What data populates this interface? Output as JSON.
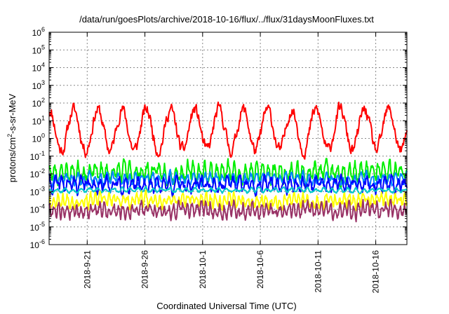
{
  "chart_data": {
    "type": "line",
    "title": "/data/run/goesPlots/archive/2018-10-16/flux/../flux/31daysMoonFluxes.txt",
    "xlabel": "Coordinated Universal Time (UTC)",
    "ylabel_base": "protons/cm",
    "ylabel_sup": "2",
    "ylabel_rest": "-s-sr-MeV",
    "yscale": "log",
    "ylim": [
      1e-06,
      1000000.0
    ],
    "grid": true,
    "y_ticks": [
      {
        "value": 1e-06,
        "base": "10",
        "exp": "-6"
      },
      {
        "value": 1e-05,
        "base": "10",
        "exp": "-5"
      },
      {
        "value": 0.0001,
        "base": "10",
        "exp": "-4"
      },
      {
        "value": 0.001,
        "base": "10",
        "exp": "-3"
      },
      {
        "value": 0.01,
        "base": "10",
        "exp": "-2"
      },
      {
        "value": 0.1,
        "base": "10",
        "exp": "-1"
      },
      {
        "value": 1,
        "base": "10",
        "exp": "0"
      },
      {
        "value": 10.0,
        "base": "10",
        "exp": "1"
      },
      {
        "value": 100.0,
        "base": "10",
        "exp": "2"
      },
      {
        "value": 1000.0,
        "base": "10",
        "exp": "3"
      },
      {
        "value": 10000.0,
        "base": "10",
        "exp": "4"
      },
      {
        "value": 100000.0,
        "base": "10",
        "exp": "5"
      },
      {
        "value": 1000000.0,
        "base": "10",
        "exp": "6"
      }
    ],
    "xlim_days": [
      0,
      31
    ],
    "x_ticks": [
      {
        "label": "2018-9-21",
        "day": 3.3
      },
      {
        "label": "2018-9-26",
        "day": 8.3
      },
      {
        "label": "2018-10-1",
        "day": 13.3
      },
      {
        "label": "2018-10-6",
        "day": 18.3
      },
      {
        "label": "2018-10-11",
        "day": 23.3
      },
      {
        "label": "2018-10-16",
        "day": 28.3
      }
    ],
    "series": [
      {
        "color": "#ff0000",
        "center": 3.0,
        "spread": 1.15,
        "noise": 0.35,
        "period": 2.1,
        "width": 2,
        "seed": 11
      },
      {
        "color": "#00ee00",
        "center": 0.012,
        "spread": 0.45,
        "noise": 0.35,
        "period": 0.5,
        "width": 2,
        "seed": 23
      },
      {
        "color": "#0088ff",
        "center": 0.005,
        "spread": 0.25,
        "noise": 0.2,
        "period": 0.5,
        "width": 2,
        "seed": 37
      },
      {
        "color": "#0000ff",
        "center": 0.0025,
        "spread": 0.3,
        "noise": 0.3,
        "period": 0.55,
        "width": 2,
        "seed": 41
      },
      {
        "color": "#00c8c8",
        "center": 0.0012,
        "spread": 0.1,
        "noise": 0.08,
        "period": 0.7,
        "width": 2,
        "seed": 53
      },
      {
        "color": "#ffff00",
        "center": 0.00032,
        "spread": 0.25,
        "noise": 0.25,
        "period": 0.4,
        "width": 2,
        "seed": 67
      },
      {
        "color": "#993366",
        "center": 9e-05,
        "spread": 0.3,
        "noise": 0.3,
        "period": 0.4,
        "width": 2,
        "seed": 79
      }
    ]
  }
}
